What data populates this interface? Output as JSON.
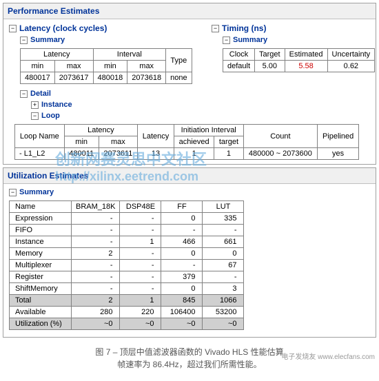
{
  "watermark": {
    "line1": "创新网赛灵思中文社区",
    "line2": "http://xilinx.eetrend.com"
  },
  "perf": {
    "title": "Performance Estimates",
    "latency_title": "Latency (clock cycles)",
    "timing_title": "Timing (ns)",
    "summary_label": "Summary",
    "detail_label": "Detail",
    "instance_label": "Instance",
    "loop_label": "Loop",
    "lat_headers": {
      "latency": "Latency",
      "interval": "Interval",
      "min": "min",
      "max": "max",
      "type": "Type"
    },
    "lat_row": {
      "min": "480017",
      "max": "2073617",
      "imin": "480018",
      "imax": "2073618",
      "type": "none"
    },
    "timing_headers": {
      "clock": "Clock",
      "target": "Target",
      "estimated": "Estimated",
      "uncertainty": "Uncertainty"
    },
    "timing_row": {
      "clock": "default",
      "target": "5.00",
      "estimated": "5.58",
      "uncertainty": "0.62"
    },
    "loop_headers": {
      "name": "Loop Name",
      "latency": "Latency",
      "min": "min",
      "max": "max",
      "lat": "Latency",
      "ii": "Initiation Interval",
      "ach": "achieved",
      "tgt": "target",
      "count": "Count",
      "pipe": "Pipelined"
    },
    "loop_row": {
      "name": "- L1_L2",
      "min": "480011",
      "max": "2073611",
      "lat": "13",
      "ach": "1",
      "tgt": "1",
      "count": "480000 ~ 2073600",
      "pipe": "yes"
    }
  },
  "util": {
    "title": "Utilization Estimates",
    "summary_label": "Summary",
    "cols": {
      "name": "Name",
      "bram": "BRAM_18K",
      "dsp": "DSP48E",
      "ff": "FF",
      "lut": "LUT"
    },
    "rows": [
      {
        "name": "Expression",
        "bram": "-",
        "dsp": "-",
        "ff": "0",
        "lut": "335"
      },
      {
        "name": "FIFO",
        "bram": "-",
        "dsp": "-",
        "ff": "-",
        "lut": "-"
      },
      {
        "name": "Instance",
        "bram": "-",
        "dsp": "1",
        "ff": "466",
        "lut": "661"
      },
      {
        "name": "Memory",
        "bram": "2",
        "dsp": "-",
        "ff": "0",
        "lut": "0"
      },
      {
        "name": "Multiplexer",
        "bram": "-",
        "dsp": "-",
        "ff": "-",
        "lut": "67"
      },
      {
        "name": "Register",
        "bram": "-",
        "dsp": "-",
        "ff": "379",
        "lut": "-"
      },
      {
        "name": "ShiftMemory",
        "bram": "-",
        "dsp": "-",
        "ff": "0",
        "lut": "3"
      }
    ],
    "totals": [
      {
        "name": "Total",
        "bram": "2",
        "dsp": "1",
        "ff": "845",
        "lut": "1066"
      },
      {
        "name": "Available",
        "bram": "280",
        "dsp": "220",
        "ff": "106400",
        "lut": "53200"
      },
      {
        "name": "Utilization (%)",
        "bram": "~0",
        "dsp": "~0",
        "ff": "~0",
        "lut": "~0"
      }
    ]
  },
  "caption": {
    "line1": "图 7 – 顶层中值滤波器函数的 Vivado HLS 性能估算",
    "line2": "帧速率为 86.4Hz，超过我们所需性能。"
  },
  "logo": "电子发烧友 www.elecfans.com"
}
